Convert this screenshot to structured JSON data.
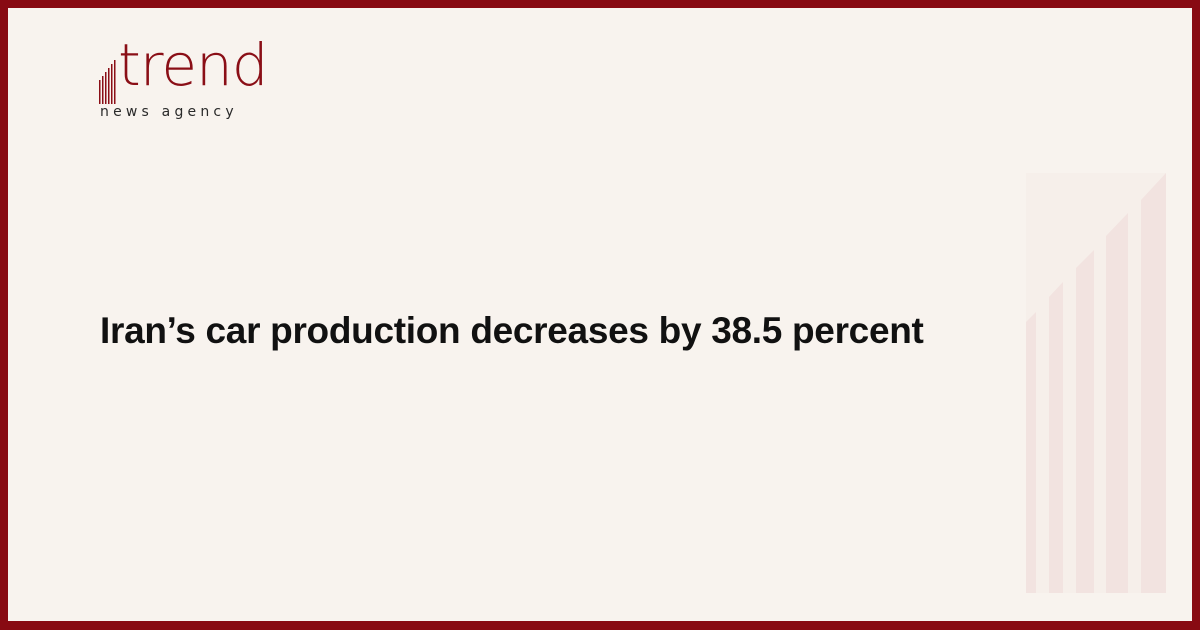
{
  "brand": {
    "name": "trend",
    "tagline": "news agency",
    "color": "#880a12"
  },
  "headline": "Iran’s car production decreases by 38.5 percent",
  "colors": {
    "background": "#f8f3ee",
    "border": "#880a12",
    "decor_bars": "#f2e3e0"
  }
}
